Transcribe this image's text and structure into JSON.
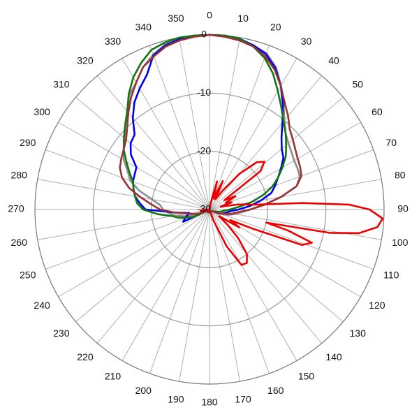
{
  "chart_data": {
    "type": "polar",
    "x": [
      0,
      5,
      10,
      15,
      20,
      25,
      30,
      35,
      40,
      45,
      50,
      55,
      60,
      65,
      70,
      75,
      80,
      85,
      90,
      95,
      100,
      105,
      110,
      115,
      120,
      125,
      130,
      135,
      140,
      145,
      150,
      155,
      160,
      165,
      170,
      175,
      180,
      185,
      190,
      195,
      200,
      205,
      210,
      215,
      220,
      225,
      230,
      235,
      240,
      245,
      250,
      255,
      260,
      265,
      270,
      275,
      280,
      285,
      290,
      295,
      300,
      305,
      310,
      315,
      320,
      325,
      330,
      335,
      340,
      345,
      350,
      355
    ],
    "xlim": [
      0,
      360
    ],
    "xticks": [
      0,
      10,
      20,
      30,
      40,
      50,
      60,
      70,
      80,
      90,
      100,
      110,
      120,
      130,
      140,
      150,
      160,
      170,
      180,
      190,
      200,
      210,
      220,
      230,
      240,
      250,
      260,
      270,
      280,
      290,
      300,
      310,
      320,
      330,
      340,
      350
    ],
    "ylim": [
      -30,
      0
    ],
    "yticks": [
      -30,
      -20,
      -10,
      0
    ],
    "grid": true,
    "series": [
      {
        "color": "#8c8c8c",
        "values": [
          0,
          0,
          -0.3,
          -0.8,
          -1.4,
          -3,
          -5.4,
          -7.8,
          -10,
          -11.5,
          -12.3,
          -12.8,
          -13.2,
          -13.3,
          -13.5,
          -14.5,
          -17.5,
          -20.5,
          -23,
          -24.5,
          -25.5,
          -26.5,
          -27.5,
          -28.5,
          -29.5,
          -29.5,
          -29.5,
          -29.5,
          -29.5,
          -29.5,
          -29.5,
          -29.5,
          -29.5,
          -29.5,
          -29.5,
          -29.5,
          -29.5,
          -29.5,
          -29.5,
          -29.5,
          -29.5,
          -29.5,
          -29.5,
          -29.5,
          -29.5,
          -29.5,
          -29.5,
          -29.5,
          -29.5,
          -28.5,
          -27,
          -25.5,
          -24,
          -23,
          -22,
          -21.5,
          -20,
          -17.5,
          -15.5,
          -14.5,
          -13,
          -12,
          -11,
          -9.5,
          -8,
          -6,
          -4.8,
          -3,
          -1.7,
          -0.6,
          -0.1,
          0
        ]
      },
      {
        "color": "#0000ee",
        "values": [
          0,
          0,
          -0.2,
          -0.8,
          -1.6,
          -3.2,
          -5.5,
          -8,
          -10.5,
          -12.5,
          -13.8,
          -14.5,
          -15.8,
          -17,
          -18,
          -19,
          -21,
          -23,
          -25,
          -26.5,
          -27,
          -27.5,
          -28,
          -28.5,
          -29.5,
          -29.5,
          -29.5,
          -29.5,
          -29.5,
          -29.5,
          -29.5,
          -29.5,
          -29.5,
          -29.5,
          -29.5,
          -29.5,
          -29.5,
          -29.5,
          -29.5,
          -29.5,
          -29.5,
          -29.5,
          -29.5,
          -29.5,
          -29.5,
          -29.5,
          -29.5,
          -29.5,
          -29.5,
          -25,
          -25.5,
          -26,
          -26.5,
          -24,
          -19,
          -18,
          -17,
          -16.5,
          -16,
          -15.8,
          -15.5,
          -13.5,
          -12.3,
          -11.8,
          -9.5,
          -7.5,
          -6,
          -4.5,
          -1.8,
          -0.8,
          -0.3,
          0
        ]
      },
      {
        "color": "#117711",
        "values": [
          0,
          0,
          -0.2,
          -1,
          -2.3,
          -4.2,
          -6.5,
          -8.5,
          -10.2,
          -11.5,
          -12.8,
          -14,
          -15.5,
          -17,
          -18.5,
          -20.5,
          -22.7,
          -25,
          -26.5,
          -27.5,
          -28,
          -28.5,
          -29,
          -29.2,
          -29.5,
          -29.5,
          -29.5,
          -29.5,
          -29.5,
          -29.5,
          -29.5,
          -29.5,
          -29.5,
          -29.5,
          -29.5,
          -29.5,
          -29.5,
          -29.5,
          -29.5,
          -29.5,
          -29.5,
          -29.5,
          -29.5,
          -29.5,
          -29.5,
          -29.5,
          -29.5,
          -29.5,
          -29.5,
          -27,
          -26,
          -24.5,
          -23.5,
          -21,
          -18.6,
          -17.5,
          -17,
          -16.5,
          -16,
          -14.8,
          -13.5,
          -12,
          -10.8,
          -9.5,
          -8,
          -5.8,
          -3.8,
          -2.2,
          -0.8,
          -0.3,
          0,
          0
        ]
      },
      {
        "color": "#993333",
        "values": [
          0,
          -0.2,
          -0.5,
          -1,
          -2,
          -3.5,
          -5.5,
          -7.5,
          -9,
          -10.5,
          -11.3,
          -12,
          -12.5,
          -12.8,
          -13.2,
          -14.5,
          -17.5,
          -20.5,
          -23,
          -25,
          -26,
          -27,
          -28,
          -28.8,
          -29.5,
          -29.5,
          -29.5,
          -29.5,
          -29.5,
          -29.5,
          -29.5,
          -29.5,
          -29.5,
          -29.5,
          -29.5,
          -29.5,
          -29.5,
          -29.5,
          -29.5,
          -29.5,
          -29.5,
          -29.5,
          -29.5,
          -29.5,
          -29.5,
          -29.5,
          -29.5,
          -29.5,
          -29.5,
          -29,
          -28,
          -27,
          -26,
          -24,
          -21.5,
          -20,
          -18,
          -15.7,
          -14,
          -13,
          -12.5,
          -12,
          -11.3,
          -10,
          -8.3,
          -6.5,
          -4.8,
          -3,
          -2,
          -1,
          -0.5,
          -0.2
        ]
      },
      {
        "color": "#ee0000",
        "x": [
          0,
          10,
          15,
          20,
          25,
          30,
          35,
          40,
          45,
          49,
          53,
          58,
          63,
          68,
          72,
          76,
          80,
          84,
          86,
          88,
          90,
          93,
          96,
          99,
          101,
          103,
          105,
          108,
          111,
          114,
          117,
          121,
          125,
          130,
          135,
          140,
          145,
          150,
          155,
          160,
          170,
          180,
          200,
          220,
          240,
          255,
          265,
          280,
          300,
          330,
          355
        ],
        "values": [
          -30,
          -29,
          -25,
          -28,
          -24.6,
          -28,
          -26,
          -22,
          -18.5,
          -17.5,
          -19,
          -27,
          -25,
          -27,
          -26,
          -28,
          -25,
          -22,
          -14,
          -6,
          -2.5,
          -0.2,
          -1,
          -4,
          -9,
          -20,
          -16,
          -11.5,
          -13,
          -22,
          -26,
          -24,
          -28,
          -26,
          -23,
          -20,
          -18.8,
          -19,
          -23,
          -28,
          -30,
          -30,
          -30,
          -30,
          -30,
          -28.5,
          -28.5,
          -30,
          -30,
          -30,
          -30
        ]
      }
    ]
  }
}
